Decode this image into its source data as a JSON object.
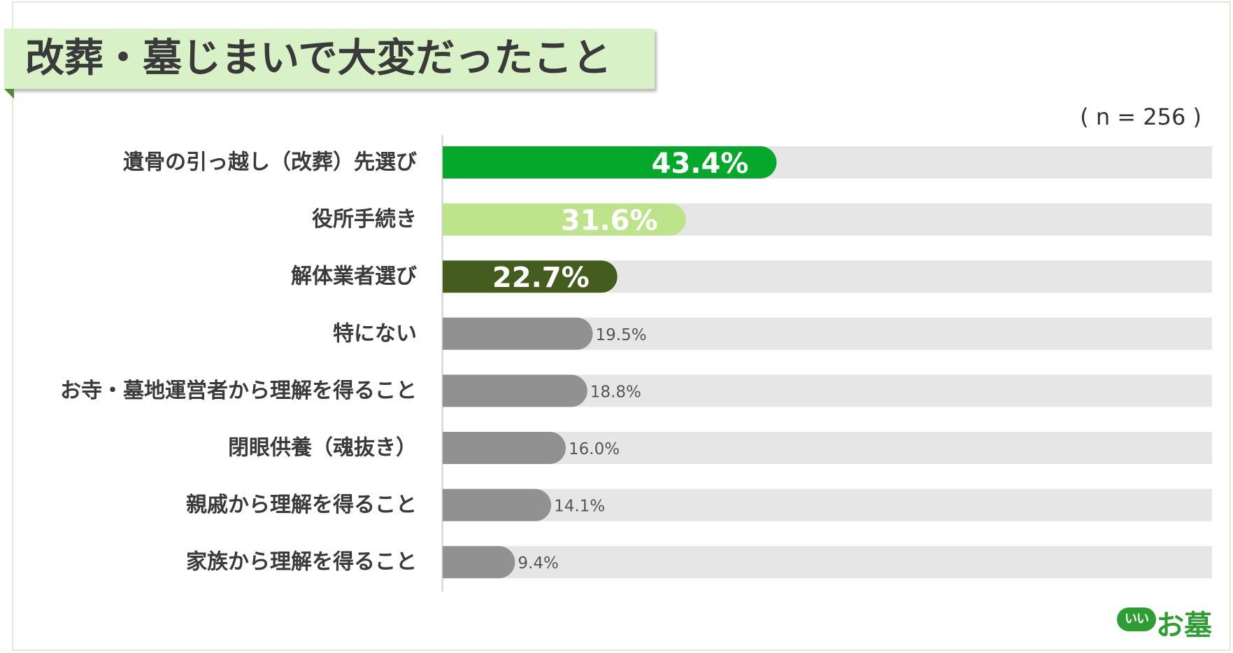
{
  "title": "改葬・墓じまいで大変だったこと",
  "sample_size_label": "( n = 256 )",
  "logo": {
    "badge_text": "いい",
    "text": "お墓"
  },
  "colors": {
    "top1": "#05a82a",
    "top2": "#bde38b",
    "top3": "#445c1d",
    "rest": "#919191",
    "track": "#e6e6e6",
    "label_text": "#3a3a3a"
  },
  "chart_data": {
    "type": "bar",
    "orientation": "horizontal",
    "unit": "%",
    "xlim": [
      0,
      100
    ],
    "grid": false,
    "categories": [
      "遺骨の引っ越し（改葬）先選び",
      "役所手続き",
      "解体業者選び",
      "特にない",
      "お寺・墓地運営者から理解を得ること",
      "閉眼供養（魂抜き）",
      "親戚から理解を得ること",
      "家族から理解を得ること"
    ],
    "values": [
      43.4,
      31.6,
      22.7,
      19.5,
      18.8,
      16.0,
      14.1,
      9.4
    ],
    "value_labels": [
      "43.4%",
      "31.6%",
      "22.7%",
      "19.5%",
      "18.8%",
      "16.0%",
      "14.1%",
      "9.4%"
    ]
  }
}
